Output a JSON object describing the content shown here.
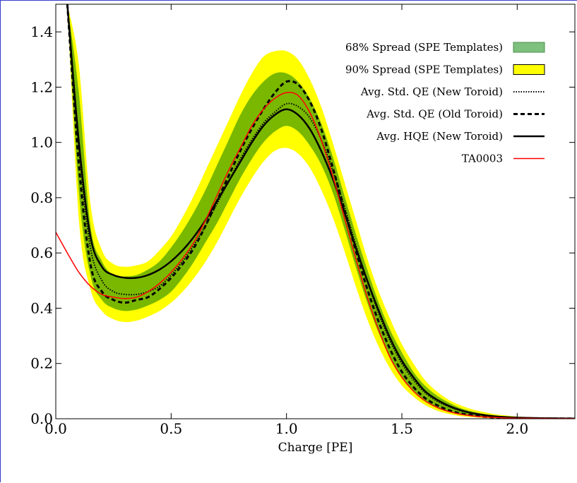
{
  "chart_data": {
    "type": "line",
    "title": "",
    "xlabel": "Charge [PE]",
    "ylabel": "",
    "xlim": [
      0.0,
      2.25
    ],
    "ylim": [
      0.0,
      1.5
    ],
    "x_ticks": [
      0.0,
      0.5,
      1.0,
      1.5,
      2.0
    ],
    "x_tick_labels": [
      "0.0",
      "0.5",
      "1.0",
      "1.5",
      "2.0"
    ],
    "y_ticks": [
      0.0,
      0.2,
      0.4,
      0.6,
      0.8,
      1.0,
      1.2,
      1.4
    ],
    "y_tick_labels": [
      "0.0",
      "0.2",
      "0.4",
      "0.6",
      "0.8",
      "1.0",
      "1.2",
      "1.4"
    ],
    "grid": false,
    "legend_position": "top-right",
    "x": [
      0.05,
      0.1,
      0.15,
      0.2,
      0.25,
      0.3,
      0.35,
      0.4,
      0.45,
      0.5,
      0.55,
      0.6,
      0.65,
      0.7,
      0.75,
      0.8,
      0.85,
      0.9,
      0.95,
      1.0,
      1.05,
      1.1,
      1.15,
      1.2,
      1.25,
      1.3,
      1.35,
      1.4,
      1.45,
      1.5,
      1.55,
      1.6,
      1.65,
      1.7,
      1.75,
      1.8,
      1.85,
      1.9,
      1.95,
      2.0,
      2.05,
      2.1,
      2.15,
      2.2,
      2.25
    ],
    "bands": [
      {
        "name": "90% Spread (SPE Templates)",
        "color": "#ffff00",
        "edge": "#000000",
        "lower": [
          1.5,
          0.72,
          0.47,
          0.39,
          0.36,
          0.35,
          0.355,
          0.37,
          0.39,
          0.42,
          0.46,
          0.51,
          0.57,
          0.64,
          0.72,
          0.8,
          0.87,
          0.93,
          0.97,
          0.98,
          0.96,
          0.91,
          0.83,
          0.73,
          0.61,
          0.48,
          0.36,
          0.26,
          0.18,
          0.12,
          0.08,
          0.05,
          0.03,
          0.018,
          0.01,
          0.006,
          0.003,
          0.002,
          0.001,
          0.0005,
          0.0,
          0.0,
          0.0,
          0.0,
          0.0
        ],
        "upper": [
          1.5,
          1.28,
          0.78,
          0.61,
          0.56,
          0.55,
          0.555,
          0.57,
          0.61,
          0.66,
          0.73,
          0.81,
          0.9,
          0.99,
          1.08,
          1.17,
          1.25,
          1.31,
          1.33,
          1.33,
          1.3,
          1.23,
          1.13,
          1.0,
          0.86,
          0.72,
          0.58,
          0.46,
          0.36,
          0.27,
          0.2,
          0.14,
          0.1,
          0.07,
          0.05,
          0.035,
          0.025,
          0.017,
          0.012,
          0.008,
          0.006,
          0.004,
          0.003,
          0.002,
          0.0015
        ]
      },
      {
        "name": "68% Spread (SPE Templates)",
        "color": "#7ab800",
        "legend_color": "#7ec07e",
        "lower": [
          1.5,
          0.82,
          0.52,
          0.43,
          0.4,
          0.39,
          0.395,
          0.41,
          0.43,
          0.46,
          0.51,
          0.57,
          0.64,
          0.71,
          0.79,
          0.87,
          0.94,
          1.0,
          1.04,
          1.06,
          1.04,
          0.99,
          0.92,
          0.82,
          0.69,
          0.55,
          0.42,
          0.31,
          0.22,
          0.15,
          0.1,
          0.065,
          0.04,
          0.025,
          0.015,
          0.009,
          0.005,
          0.003,
          0.002,
          0.001,
          0.0005,
          0.0,
          0.0,
          0.0,
          0.0
        ],
        "upper": [
          1.5,
          1.18,
          0.7,
          0.57,
          0.52,
          0.515,
          0.52,
          0.54,
          0.57,
          0.62,
          0.68,
          0.75,
          0.83,
          0.92,
          1.01,
          1.1,
          1.17,
          1.22,
          1.25,
          1.25,
          1.22,
          1.16,
          1.07,
          0.95,
          0.81,
          0.67,
          0.54,
          0.42,
          0.32,
          0.24,
          0.17,
          0.12,
          0.085,
          0.06,
          0.04,
          0.027,
          0.018,
          0.012,
          0.008,
          0.005,
          0.004,
          0.003,
          0.002,
          0.0015,
          0.001
        ]
      }
    ],
    "series": [
      {
        "name": "Avg. Std. QE (New Toroid)",
        "color": "#000000",
        "dash": "1.5,2",
        "width": 2,
        "values": [
          1.5,
          0.98,
          0.62,
          0.5,
          0.46,
          0.45,
          0.45,
          0.46,
          0.48,
          0.52,
          0.57,
          0.63,
          0.7,
          0.78,
          0.86,
          0.94,
          1.01,
          1.07,
          1.11,
          1.14,
          1.13,
          1.09,
          1.01,
          0.9,
          0.77,
          0.63,
          0.5,
          0.38,
          0.28,
          0.2,
          0.14,
          0.095,
          0.065,
          0.045,
          0.03,
          0.02,
          0.014,
          0.009,
          0.006,
          0.004,
          0.003,
          0.002,
          0.0015,
          0.001,
          0.0008
        ]
      },
      {
        "name": "Avg. Std. QE (Old Toroid)",
        "color": "#000000",
        "dash": "6,4",
        "width": 3,
        "values": [
          1.5,
          0.92,
          0.56,
          0.46,
          0.43,
          0.42,
          0.43,
          0.44,
          0.47,
          0.51,
          0.56,
          0.62,
          0.7,
          0.79,
          0.88,
          0.97,
          1.05,
          1.12,
          1.18,
          1.22,
          1.21,
          1.15,
          1.05,
          0.91,
          0.76,
          0.61,
          0.47,
          0.35,
          0.25,
          0.17,
          0.115,
          0.075,
          0.05,
          0.032,
          0.02,
          0.013,
          0.008,
          0.005,
          0.003,
          0.002,
          0.0015,
          0.001,
          0.0008,
          0.0006,
          0.0005
        ]
      },
      {
        "name": "Avg. HQE (New Toroid)",
        "color": "#000000",
        "dash": "",
        "width": 2.5,
        "values": [
          1.5,
          1.0,
          0.66,
          0.55,
          0.52,
          0.51,
          0.51,
          0.52,
          0.54,
          0.57,
          0.61,
          0.66,
          0.72,
          0.79,
          0.86,
          0.93,
          1.0,
          1.06,
          1.1,
          1.12,
          1.1,
          1.05,
          0.97,
          0.87,
          0.75,
          0.62,
          0.5,
          0.39,
          0.29,
          0.21,
          0.15,
          0.1,
          0.07,
          0.048,
          0.032,
          0.021,
          0.014,
          0.009,
          0.006,
          0.004,
          0.003,
          0.002,
          0.0015,
          0.001,
          0.0008
        ]
      },
      {
        "name": "TA0003",
        "color": "#ff0000",
        "dash": "",
        "width": 1.5,
        "x": [
          0.0,
          0.05,
          0.1,
          0.15,
          0.2,
          0.25,
          0.3,
          0.35,
          0.4,
          0.45,
          0.5,
          0.55,
          0.6,
          0.65,
          0.7,
          0.75,
          0.8,
          0.85,
          0.9,
          0.95,
          1.0,
          1.05,
          1.1,
          1.15,
          1.2,
          1.25,
          1.3,
          1.35,
          1.4,
          1.45,
          1.5,
          1.55,
          1.6,
          1.65,
          1.7,
          1.75,
          1.8,
          1.85,
          1.9,
          1.95,
          2.0,
          2.05,
          2.1,
          2.15,
          2.2,
          2.25
        ],
        "values": [
          0.675,
          0.6,
          0.53,
          0.48,
          0.45,
          0.44,
          0.435,
          0.44,
          0.46,
          0.49,
          0.53,
          0.58,
          0.64,
          0.72,
          0.81,
          0.9,
          0.98,
          1.06,
          1.12,
          1.16,
          1.18,
          1.17,
          1.11,
          1.01,
          0.88,
          0.73,
          0.58,
          0.44,
          0.32,
          0.22,
          0.15,
          0.1,
          0.065,
          0.042,
          0.027,
          0.017,
          0.011,
          0.007,
          0.005,
          0.003,
          0.002,
          0.0015,
          0.001,
          0.0008,
          0.0006,
          0.0005
        ]
      }
    ],
    "legend_entries": [
      {
        "label": "68% Spread (SPE Templates)",
        "kind": "patch",
        "color": "#7ec07e",
        "edge": "#4a904a"
      },
      {
        "label": "90% Spread (SPE Templates)",
        "kind": "patch",
        "color": "#ffff00",
        "edge": "#000000"
      },
      {
        "label": "Avg. Std. QE (New Toroid)",
        "kind": "line",
        "color": "#000000",
        "dash": "1.5,2",
        "width": 2
      },
      {
        "label": "Avg. Std. QE (Old Toroid)",
        "kind": "line",
        "color": "#000000",
        "dash": "6,4",
        "width": 3
      },
      {
        "label": "Avg. HQE (New Toroid)",
        "kind": "line",
        "color": "#000000",
        "dash": "",
        "width": 2.5
      },
      {
        "label": "TA0003",
        "kind": "line",
        "color": "#ff0000",
        "dash": "",
        "width": 1.5
      }
    ]
  }
}
